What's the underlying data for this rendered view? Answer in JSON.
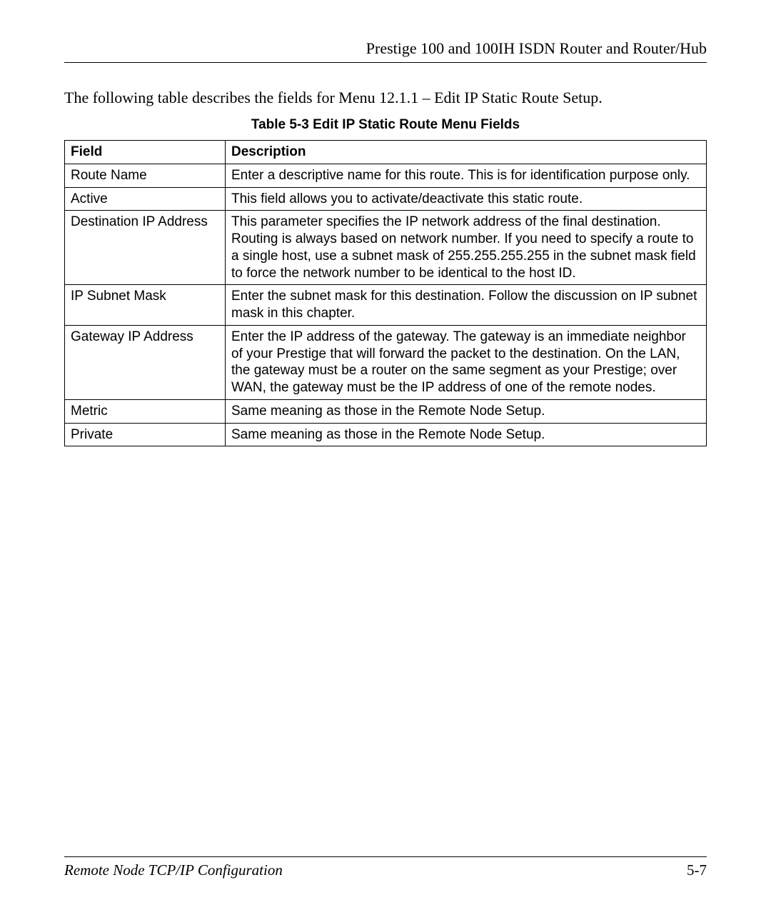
{
  "header": {
    "title": "Prestige 100 and 100IH ISDN Router and Router/Hub"
  },
  "intro": "The following table describes the fields for Menu 12.1.1 – Edit IP Static Route Setup.",
  "table": {
    "caption": "Table 5-3 Edit IP Static Route Menu Fields",
    "headers": {
      "field": "Field",
      "description": "Description"
    },
    "rows": [
      {
        "field": "Route Name",
        "description": "Enter a descriptive name for this route. This is for identification purpose only."
      },
      {
        "field": "Active",
        "description": "This field allows you to activate/deactivate this static route."
      },
      {
        "field": "Destination IP Address",
        "description": "This parameter specifies the IP network address of the final destination. Routing is always based on network number. If you need to specify a route to a single host, use a subnet mask of 255.255.255.255 in the subnet mask field to force the network number to be identical to the host ID."
      },
      {
        "field": "IP Subnet Mask",
        "description": "Enter the subnet mask for this destination. Follow the discussion on IP subnet mask in this chapter."
      },
      {
        "field": "Gateway IP Address",
        "description": "Enter the IP address of the gateway. The gateway is an immediate neighbor of your Prestige that will forward the packet to the destination. On the LAN, the gateway must be a router on the same segment as your Prestige; over WAN, the gateway must be the IP address of one of the remote nodes."
      },
      {
        "field": "Metric",
        "description": "Same meaning as those in the Remote Node Setup."
      },
      {
        "field": "Private",
        "description": "Same meaning as those in the Remote Node Setup."
      }
    ]
  },
  "footer": {
    "left": "Remote Node TCP/IP Configuration",
    "right": "5-7"
  }
}
